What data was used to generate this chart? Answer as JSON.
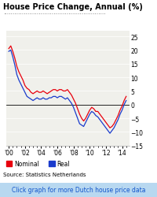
{
  "title": "House Price Change, Annual (%)",
  "x_ticks": [
    "'00",
    "'02",
    "'04",
    "'06",
    "'08",
    "'10",
    "'12",
    "'14"
  ],
  "x_tick_vals": [
    2000,
    2002,
    2004,
    2006,
    2008,
    2010,
    2012,
    2014
  ],
  "ylim": [
    -15,
    27
  ],
  "yticks": [
    -15,
    -10,
    -5,
    0,
    5,
    10,
    15,
    20,
    25
  ],
  "source_text": "Source: Statistics Netherlands",
  "footer_text": "Click graph for more Dutch house price data",
  "legend_nominal": "Nominal",
  "legend_real": "Real",
  "nominal_color": "#e8000d",
  "real_color": "#1a3bcc",
  "bg_color": "#f0f0eb",
  "footer_bg": "#b8d8f0",
  "nominal_data": [
    [
      2000.0,
      20.5
    ],
    [
      2000.25,
      21.5
    ],
    [
      2000.5,
      19.5
    ],
    [
      2000.75,
      17.0
    ],
    [
      2001.0,
      14.0
    ],
    [
      2001.25,
      12.0
    ],
    [
      2001.5,
      10.5
    ],
    [
      2001.75,
      9.0
    ],
    [
      2002.0,
      7.0
    ],
    [
      2002.25,
      6.0
    ],
    [
      2002.5,
      5.5
    ],
    [
      2002.75,
      4.5
    ],
    [
      2003.0,
      4.0
    ],
    [
      2003.25,
      4.5
    ],
    [
      2003.5,
      5.0
    ],
    [
      2003.75,
      4.5
    ],
    [
      2004.0,
      4.5
    ],
    [
      2004.25,
      5.0
    ],
    [
      2004.5,
      4.5
    ],
    [
      2004.75,
      4.0
    ],
    [
      2005.0,
      4.5
    ],
    [
      2005.25,
      5.0
    ],
    [
      2005.5,
      5.5
    ],
    [
      2005.75,
      5.5
    ],
    [
      2006.0,
      5.0
    ],
    [
      2006.25,
      5.5
    ],
    [
      2006.5,
      5.5
    ],
    [
      2006.75,
      5.0
    ],
    [
      2007.0,
      5.0
    ],
    [
      2007.25,
      5.5
    ],
    [
      2007.5,
      4.5
    ],
    [
      2007.75,
      3.5
    ],
    [
      2008.0,
      2.0
    ],
    [
      2008.25,
      0.5
    ],
    [
      2008.5,
      -1.5
    ],
    [
      2008.75,
      -3.5
    ],
    [
      2009.0,
      -5.0
    ],
    [
      2009.25,
      -6.0
    ],
    [
      2009.5,
      -5.0
    ],
    [
      2009.75,
      -3.5
    ],
    [
      2010.0,
      -2.0
    ],
    [
      2010.25,
      -1.0
    ],
    [
      2010.5,
      -1.5
    ],
    [
      2010.75,
      -2.5
    ],
    [
      2011.0,
      -2.5
    ],
    [
      2011.25,
      -3.5
    ],
    [
      2011.5,
      -4.5
    ],
    [
      2011.75,
      -5.5
    ],
    [
      2012.0,
      -6.5
    ],
    [
      2012.25,
      -7.5
    ],
    [
      2012.5,
      -8.5
    ],
    [
      2012.75,
      -8.0
    ],
    [
      2013.0,
      -7.0
    ],
    [
      2013.25,
      -5.5
    ],
    [
      2013.5,
      -4.0
    ],
    [
      2013.75,
      -2.0
    ],
    [
      2014.0,
      -0.5
    ],
    [
      2014.25,
      1.5
    ],
    [
      2014.5,
      3.0
    ]
  ],
  "real_data": [
    [
      2000.0,
      19.5
    ],
    [
      2000.25,
      20.0
    ],
    [
      2000.5,
      17.5
    ],
    [
      2000.75,
      14.5
    ],
    [
      2001.0,
      11.0
    ],
    [
      2001.25,
      9.0
    ],
    [
      2001.5,
      7.5
    ],
    [
      2001.75,
      6.0
    ],
    [
      2002.0,
      4.5
    ],
    [
      2002.25,
      3.0
    ],
    [
      2002.5,
      2.5
    ],
    [
      2002.75,
      2.0
    ],
    [
      2003.0,
      1.5
    ],
    [
      2003.25,
      2.0
    ],
    [
      2003.5,
      2.5
    ],
    [
      2003.75,
      2.0
    ],
    [
      2004.0,
      2.0
    ],
    [
      2004.25,
      2.5
    ],
    [
      2004.5,
      2.0
    ],
    [
      2004.75,
      2.0
    ],
    [
      2005.0,
      2.5
    ],
    [
      2005.25,
      2.5
    ],
    [
      2005.5,
      3.0
    ],
    [
      2005.75,
      3.0
    ],
    [
      2006.0,
      2.5
    ],
    [
      2006.25,
      3.0
    ],
    [
      2006.5,
      3.0
    ],
    [
      2006.75,
      2.5
    ],
    [
      2007.0,
      2.0
    ],
    [
      2007.25,
      2.5
    ],
    [
      2007.5,
      1.5
    ],
    [
      2007.75,
      0.5
    ],
    [
      2008.0,
      -1.0
    ],
    [
      2008.25,
      -3.0
    ],
    [
      2008.5,
      -5.0
    ],
    [
      2008.75,
      -7.0
    ],
    [
      2009.0,
      -7.5
    ],
    [
      2009.25,
      -8.0
    ],
    [
      2009.5,
      -6.5
    ],
    [
      2009.75,
      -5.0
    ],
    [
      2010.0,
      -3.5
    ],
    [
      2010.25,
      -2.5
    ],
    [
      2010.5,
      -3.0
    ],
    [
      2010.75,
      -4.0
    ],
    [
      2011.0,
      -4.5
    ],
    [
      2011.25,
      -5.5
    ],
    [
      2011.5,
      -6.5
    ],
    [
      2011.75,
      -7.5
    ],
    [
      2012.0,
      -8.5
    ],
    [
      2012.25,
      -9.5
    ],
    [
      2012.5,
      -10.5
    ],
    [
      2012.75,
      -9.5
    ],
    [
      2013.0,
      -8.5
    ],
    [
      2013.25,
      -7.0
    ],
    [
      2013.5,
      -5.5
    ],
    [
      2013.75,
      -3.5
    ],
    [
      2014.0,
      -2.0
    ],
    [
      2014.25,
      0.0
    ],
    [
      2014.5,
      1.5
    ]
  ]
}
